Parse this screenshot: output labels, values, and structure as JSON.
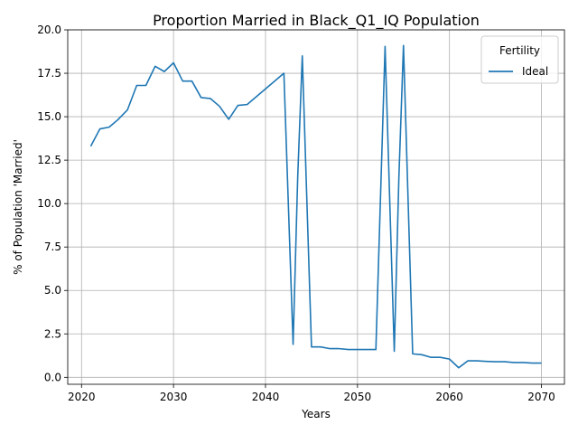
{
  "chart_data": {
    "type": "line",
    "title": "Proportion Married in Black_Q1_IQ Population",
    "xlabel": "Years",
    "ylabel": "% of Population 'Married'",
    "xlim": [
      2018.5,
      2072.5
    ],
    "ylim": [
      -0.4,
      20.0
    ],
    "xticks": [
      2020,
      2030,
      2040,
      2050,
      2060,
      2070
    ],
    "yticks": [
      0.0,
      2.5,
      5.0,
      7.5,
      10.0,
      12.5,
      15.0,
      17.5,
      20.0
    ],
    "xtick_labels": [
      "2020",
      "2030",
      "2040",
      "2050",
      "2060",
      "2070"
    ],
    "ytick_labels": [
      "0.0",
      "2.5",
      "5.0",
      "7.5",
      "10.0",
      "12.5",
      "15.0",
      "17.5",
      "20.0"
    ],
    "grid": true,
    "legend": {
      "title": "Fertility",
      "placement": "top-right"
    },
    "series": [
      {
        "name": "Ideal",
        "color": "#1f77b4",
        "x": [
          2021,
          2022,
          2023,
          2024,
          2025,
          2026,
          2027,
          2028,
          2029,
          2030,
          2031,
          2032,
          2033,
          2034,
          2035,
          2036,
          2037,
          2038,
          2042,
          2043,
          2043.5,
          2044,
          2045,
          2046,
          2047,
          2048,
          2049,
          2050,
          2051,
          2052,
          2053,
          2054,
          2054.5,
          2055,
          2056,
          2057,
          2058,
          2059,
          2060,
          2061,
          2062,
          2063,
          2064,
          2065,
          2066,
          2067,
          2068,
          2069,
          2070
        ],
        "y": [
          13.3,
          14.3,
          14.4,
          14.85,
          15.4,
          16.8,
          16.8,
          17.9,
          17.6,
          18.1,
          17.05,
          17.05,
          16.1,
          16.05,
          15.6,
          14.85,
          15.65,
          15.7,
          17.5,
          1.9,
          11.5,
          18.5,
          1.75,
          1.75,
          1.65,
          1.65,
          1.6,
          1.6,
          1.6,
          1.6,
          19.05,
          1.5,
          11.5,
          19.1,
          1.35,
          1.3,
          1.15,
          1.15,
          1.05,
          0.55,
          0.95,
          0.95,
          0.92,
          0.9,
          0.9,
          0.85,
          0.85,
          0.82,
          0.82
        ]
      }
    ]
  }
}
